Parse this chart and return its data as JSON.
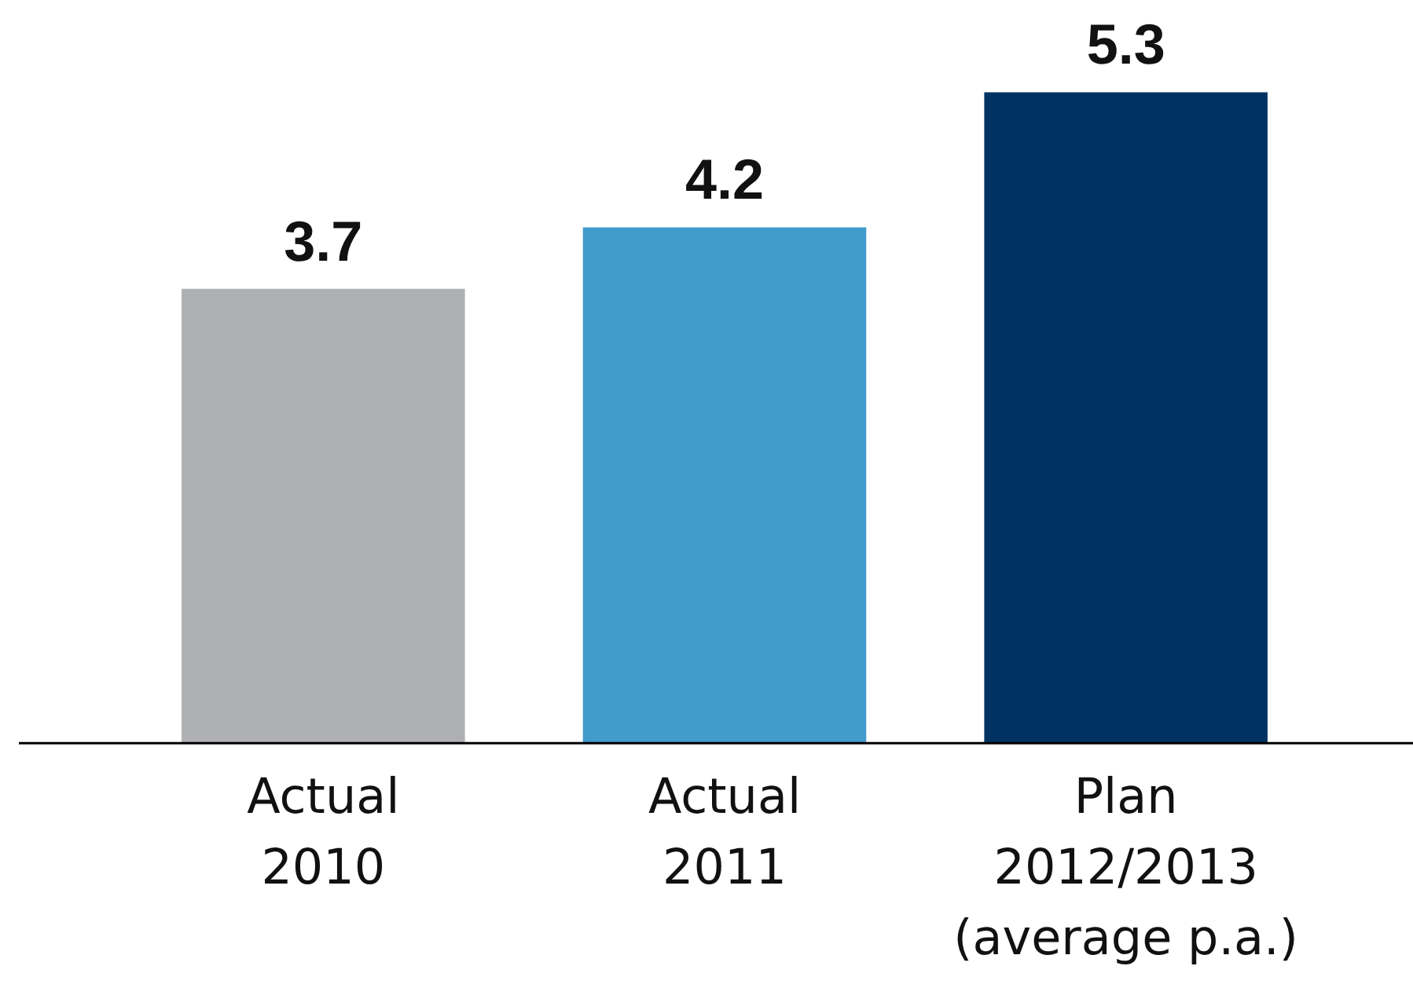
{
  "chart_data": {
    "type": "bar",
    "categories": [
      "Actual\n2010",
      "Actual\n2011",
      "Plan\n2012/2013\n(average p.a.)"
    ],
    "values": [
      3.7,
      4.2,
      5.3
    ],
    "colors": [
      "#aeb0b3",
      "#419bcb",
      "#003361"
    ],
    "data_labels": true,
    "grid": false,
    "legend": false
  }
}
